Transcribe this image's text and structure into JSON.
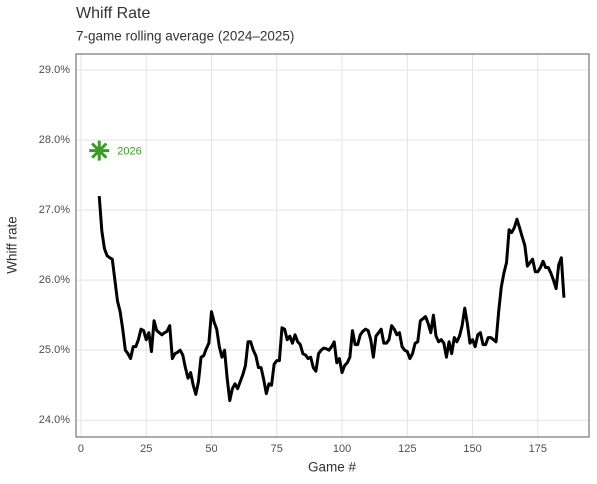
{
  "chart_data": {
    "type": "line",
    "title": "Whiff Rate",
    "subtitle": "7-game rolling average (2024–2025)",
    "xlabel": "Game #",
    "ylabel": "Whiff rate",
    "grid": true,
    "xlim": [
      -1.9,
      194.6
    ],
    "ylim": [
      23.76,
      29.23
    ],
    "xticks": [
      0,
      25,
      50,
      75,
      100,
      125,
      150,
      175
    ],
    "yticks": [
      {
        "value": 24,
        "label": "24.0%"
      },
      {
        "value": 25,
        "label": "25.0%"
      },
      {
        "value": 26,
        "label": "26.0%"
      },
      {
        "value": 27,
        "label": "27.0%"
      },
      {
        "value": 28,
        "label": "28.0%"
      },
      {
        "value": 29,
        "label": "29.0%"
      }
    ],
    "series": [
      {
        "color": "#000000",
        "x": [
          7,
          8,
          9,
          10,
          11,
          12,
          13,
          14,
          15,
          16,
          17,
          18,
          19,
          20,
          21,
          22,
          23,
          24,
          25,
          26,
          27,
          28,
          29,
          30,
          31,
          32,
          33,
          34,
          35,
          36,
          37,
          38,
          39,
          40,
          41,
          42,
          43,
          44,
          45,
          46,
          47,
          48,
          49,
          50,
          51,
          52,
          53,
          54,
          55,
          56,
          57,
          58,
          59,
          60,
          61,
          62,
          63,
          64,
          65,
          66,
          67,
          68,
          69,
          70,
          71,
          72,
          73,
          74,
          75,
          76,
          77,
          78,
          79,
          80,
          81,
          82,
          83,
          84,
          85,
          86,
          87,
          88,
          89,
          90,
          91,
          92,
          93,
          94,
          95,
          96,
          97,
          98,
          99,
          100,
          101,
          102,
          103,
          104,
          105,
          106,
          107,
          108,
          109,
          110,
          111,
          112,
          113,
          114,
          115,
          116,
          117,
          118,
          119,
          120,
          121,
          122,
          123,
          124,
          125,
          126,
          127,
          128,
          129,
          130,
          131,
          132,
          133,
          134,
          135,
          136,
          137,
          138,
          139,
          140,
          141,
          142,
          143,
          144,
          145,
          146,
          147,
          148,
          149,
          150,
          151,
          152,
          153,
          154,
          155,
          156,
          157,
          158,
          159,
          160,
          161,
          162,
          163,
          164,
          165,
          166,
          167,
          168,
          169,
          170,
          171,
          172,
          173,
          174,
          175,
          176,
          177,
          178,
          179,
          180,
          181,
          182,
          183,
          184,
          185
        ],
        "values": [
          27.2,
          26.7,
          26.45,
          26.35,
          26.32,
          26.3,
          26.0,
          25.7,
          25.55,
          25.3,
          25.0,
          24.95,
          24.88,
          25.05,
          25.05,
          25.15,
          25.3,
          25.28,
          25.15,
          25.25,
          24.98,
          25.42,
          25.28,
          25.25,
          25.22,
          25.25,
          25.27,
          25.35,
          24.88,
          24.95,
          24.97,
          25.0,
          24.93,
          24.75,
          24.6,
          24.68,
          24.5,
          24.37,
          24.55,
          24.9,
          24.92,
          25.02,
          25.1,
          25.55,
          25.4,
          25.3,
          25.05,
          24.9,
          25.0,
          24.6,
          24.28,
          24.45,
          24.52,
          24.45,
          24.55,
          24.65,
          24.78,
          25.12,
          25.12,
          25.0,
          24.92,
          24.75,
          24.75,
          24.58,
          24.38,
          24.52,
          24.5,
          24.8,
          24.85,
          24.85,
          25.32,
          25.3,
          25.15,
          25.2,
          25.1,
          25.22,
          25.12,
          25.08,
          24.95,
          24.93,
          24.88,
          24.9,
          24.75,
          24.7,
          24.95,
          25.0,
          25.03,
          25.02,
          25.0,
          25.05,
          25.12,
          24.82,
          24.88,
          24.68,
          24.78,
          24.82,
          24.9,
          25.28,
          25.08,
          25.08,
          25.22,
          25.27,
          25.3,
          25.28,
          25.15,
          24.9,
          25.2,
          25.25,
          25.3,
          25.1,
          25.1,
          25.15,
          25.35,
          25.3,
          25.22,
          25.25,
          25.05,
          25.0,
          24.98,
          24.88,
          24.95,
          25.1,
          25.12,
          25.42,
          25.45,
          25.48,
          25.38,
          25.25,
          25.5,
          25.2,
          25.12,
          25.15,
          25.1,
          24.9,
          25.12,
          24.95,
          25.18,
          25.12,
          25.2,
          25.35,
          25.6,
          25.38,
          25.1,
          25.15,
          25.05,
          25.22,
          25.25,
          25.08,
          25.08,
          25.18,
          25.18,
          25.15,
          25.12,
          25.55,
          25.9,
          26.1,
          26.25,
          26.72,
          26.68,
          26.75,
          26.87,
          26.75,
          26.62,
          26.5,
          26.2,
          26.25,
          26.3,
          26.12,
          26.12,
          26.18,
          26.27,
          26.18,
          26.18,
          26.1,
          26.0,
          25.88,
          26.22,
          26.32,
          25.75
        ]
      }
    ],
    "annotations": [
      {
        "x": 7,
        "y": 27.85,
        "label": "2026",
        "color": "#3a9d23"
      }
    ]
  }
}
